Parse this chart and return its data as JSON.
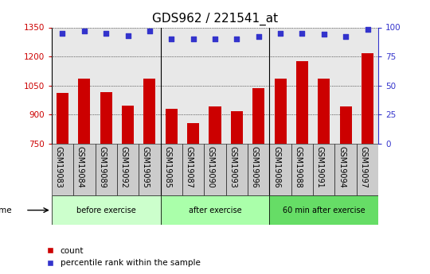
{
  "title": "GDS962 / 221541_at",
  "categories": [
    "GSM19083",
    "GSM19084",
    "GSM19089",
    "GSM19092",
    "GSM19095",
    "GSM19085",
    "GSM19087",
    "GSM19090",
    "GSM19093",
    "GSM19096",
    "GSM19086",
    "GSM19088",
    "GSM19091",
    "GSM19094",
    "GSM19097"
  ],
  "bar_values": [
    1010,
    1085,
    1015,
    945,
    1085,
    930,
    855,
    940,
    915,
    1035,
    1085,
    1175,
    1085,
    940,
    1215
  ],
  "percentile_values": [
    95,
    97,
    95,
    93,
    97,
    90,
    90,
    90,
    90,
    92,
    95,
    95,
    94,
    92,
    98
  ],
  "bar_color": "#cc0000",
  "percentile_color": "#3333cc",
  "plot_bg": "#e8e8e8",
  "tick_bg": "#cccccc",
  "ylim_left": [
    750,
    1350
  ],
  "ylim_right": [
    0,
    100
  ],
  "yticks_left": [
    750,
    900,
    1050,
    1200,
    1350
  ],
  "yticks_right": [
    0,
    25,
    50,
    75,
    100
  ],
  "groups": [
    {
      "label": "before exercise",
      "start": 0,
      "end": 5,
      "color": "#ccffcc"
    },
    {
      "label": "after exercise",
      "start": 5,
      "end": 10,
      "color": "#aaffaa"
    },
    {
      "label": "60 min after exercise",
      "start": 10,
      "end": 15,
      "color": "#66dd66"
    }
  ],
  "legend_count": "count",
  "legend_percentile": "percentile rank within the sample",
  "title_fontsize": 11,
  "tick_fontsize": 7.5,
  "bar_width": 0.55
}
